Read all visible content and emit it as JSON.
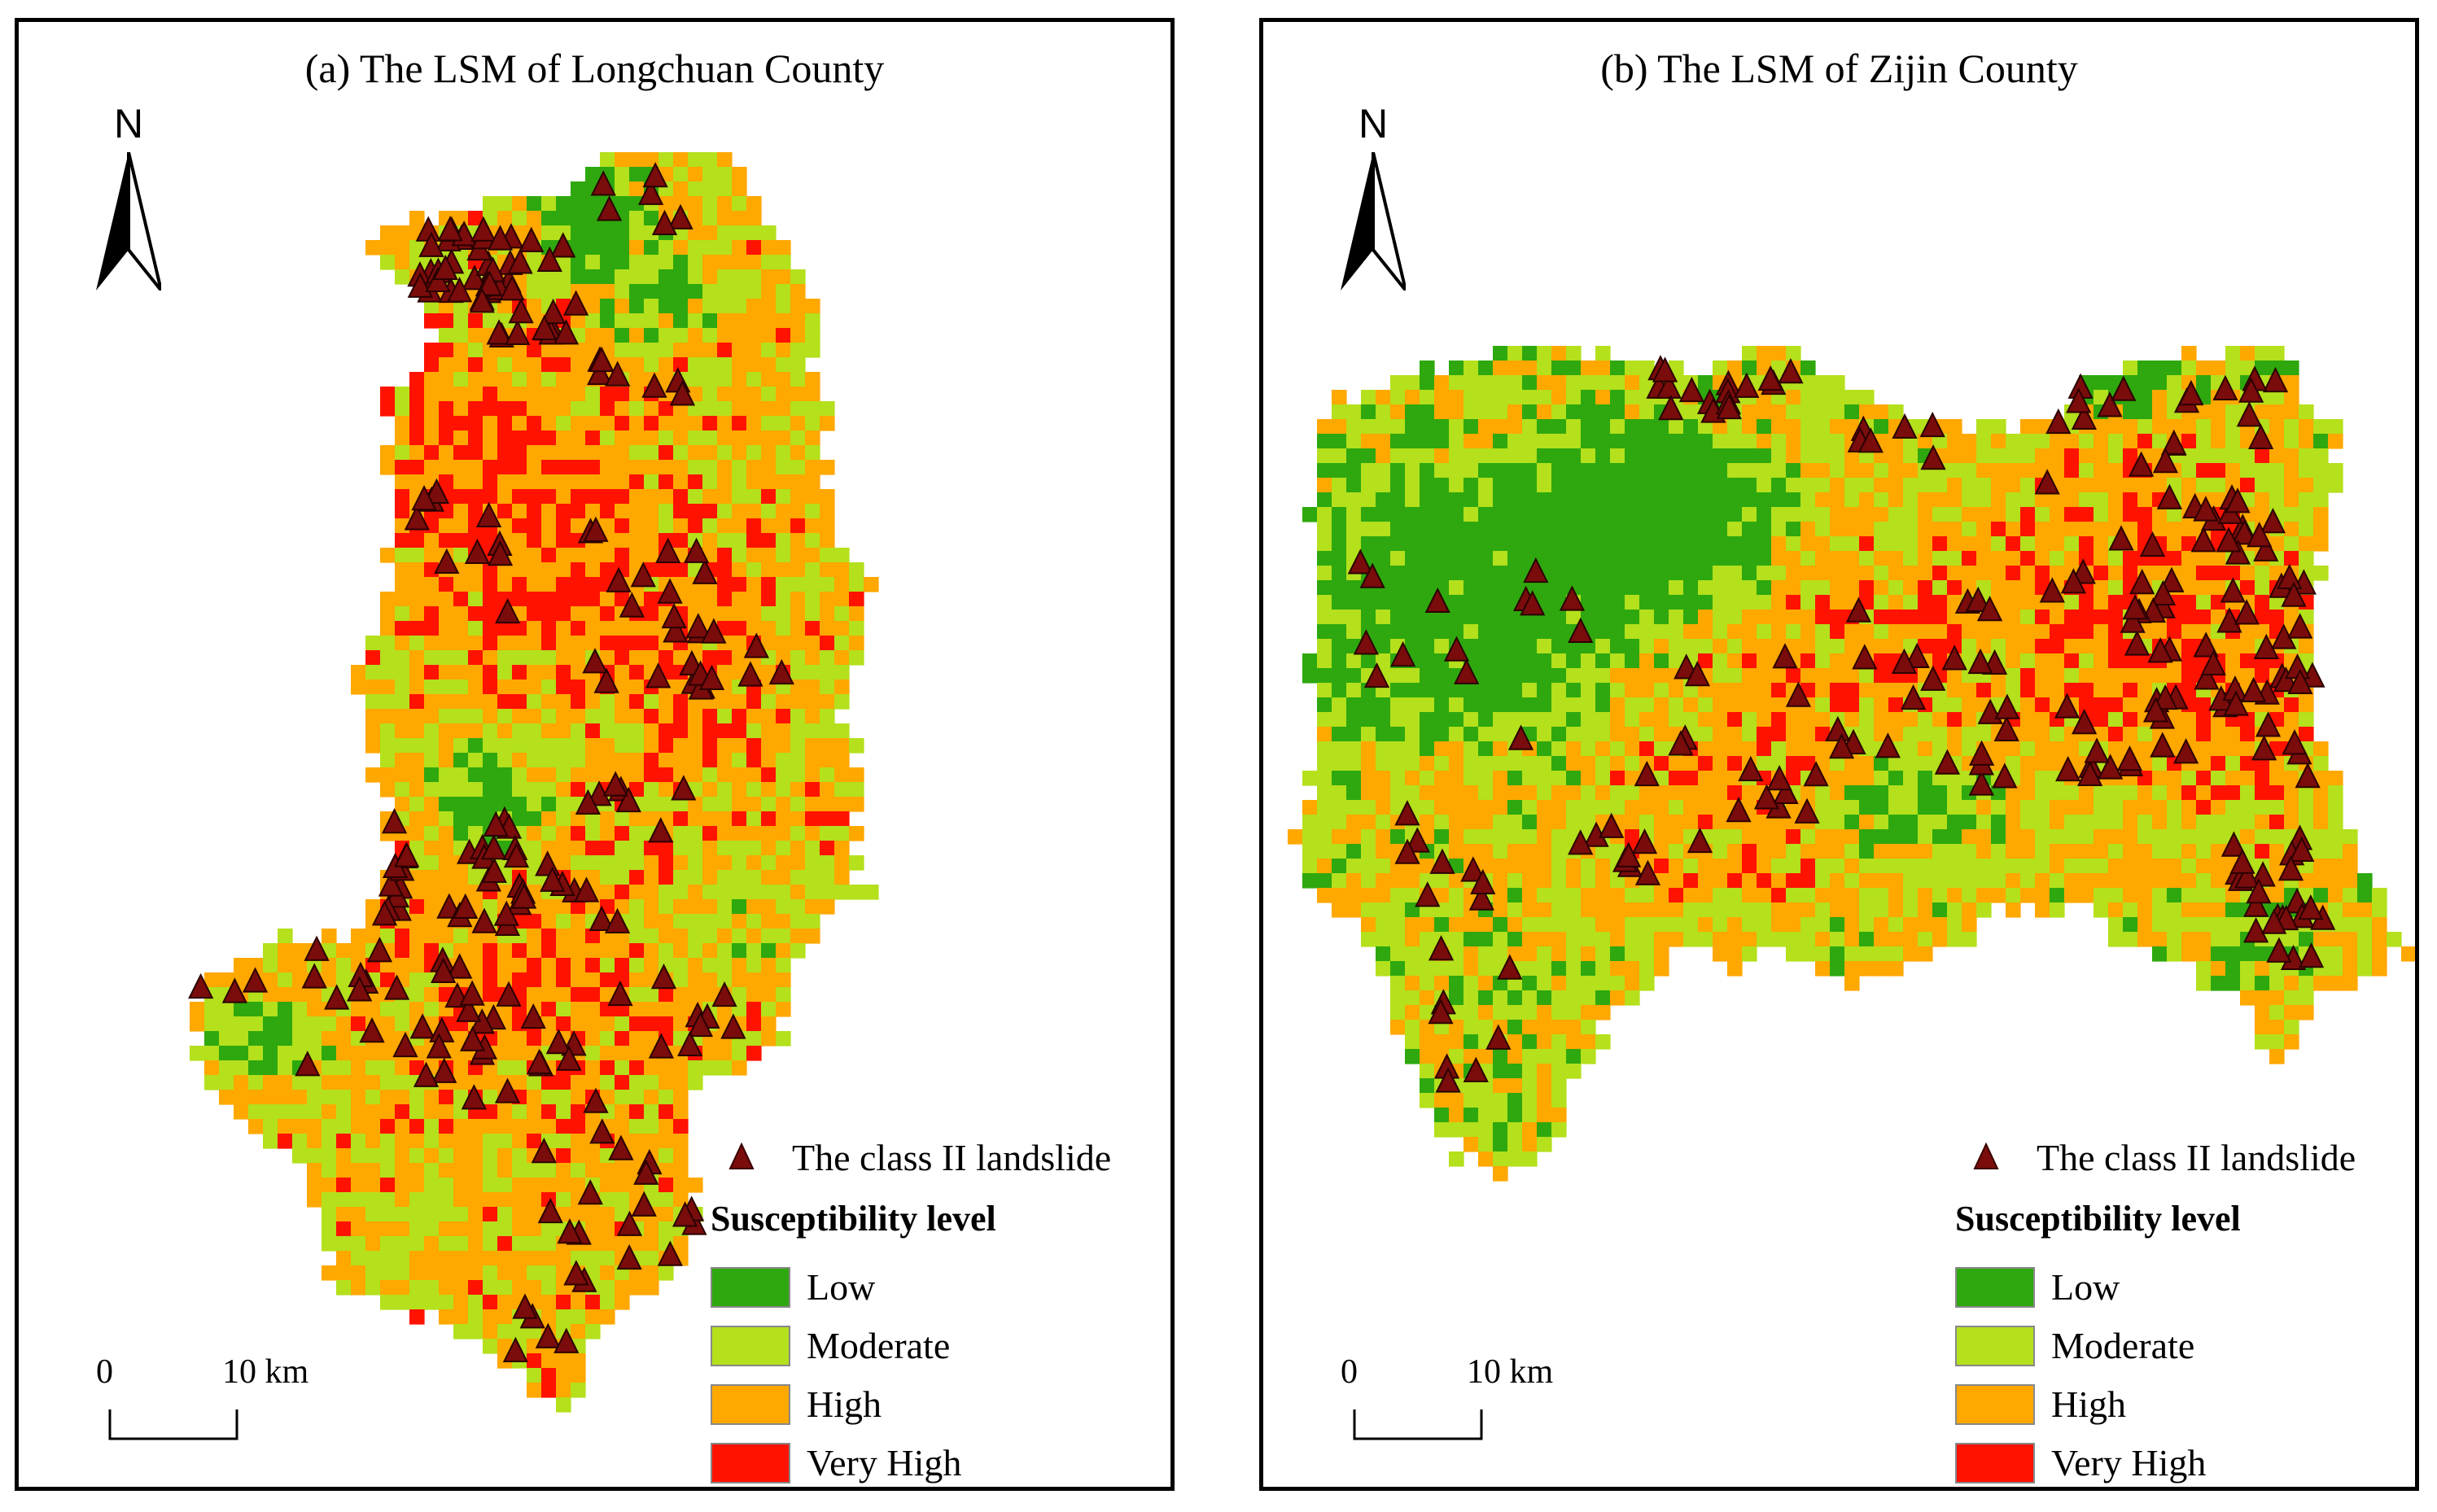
{
  "colors": {
    "low": "#2ea80e",
    "moderate": "#b4e01c",
    "high": "#ffa800",
    "very_high": "#ff1200",
    "landslide": "#7a0c0c"
  },
  "panels": [
    {
      "title": "(a) The LSM of Longchuan County",
      "north_label": "N",
      "scale": {
        "zero": "0",
        "ten": "10 km"
      },
      "legend": {
        "landslide_label": "The class II landslide",
        "title": "Susceptibility level",
        "items": [
          {
            "label": "Low",
            "color": "#2ea80e"
          },
          {
            "label": "Moderate",
            "color": "#b4e01c"
          },
          {
            "label": "High",
            "color": "#ffa800"
          },
          {
            "label": "Very High",
            "color": "#ff1200"
          }
        ]
      }
    },
    {
      "title": "(b) The LSM of Zijin County",
      "north_label": "N",
      "scale": {
        "zero": "0",
        "ten": "10 km"
      },
      "legend": {
        "landslide_label": "The class II landslide",
        "title": "Susceptibility level",
        "items": [
          {
            "label": "Low",
            "color": "#2ea80e"
          },
          {
            "label": "Moderate",
            "color": "#b4e01c"
          },
          {
            "label": "High",
            "color": "#ffa800"
          },
          {
            "label": "Very High",
            "color": "#ff1200"
          }
        ]
      }
    }
  ]
}
